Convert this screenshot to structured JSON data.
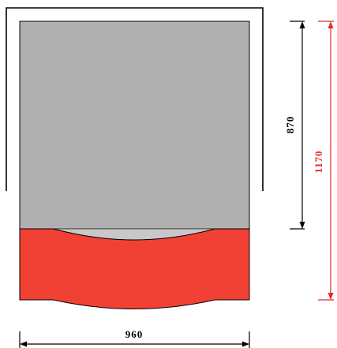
{
  "dimensions": {
    "width_label": "960",
    "inner_height_label": "870",
    "total_height_label": "1170"
  },
  "colors": {
    "frame": "#000000",
    "panel_gray": "#b0b0b0",
    "base_red": "#f04134",
    "total_dimension": "#e8282a",
    "inner_dimension": "#000000"
  }
}
